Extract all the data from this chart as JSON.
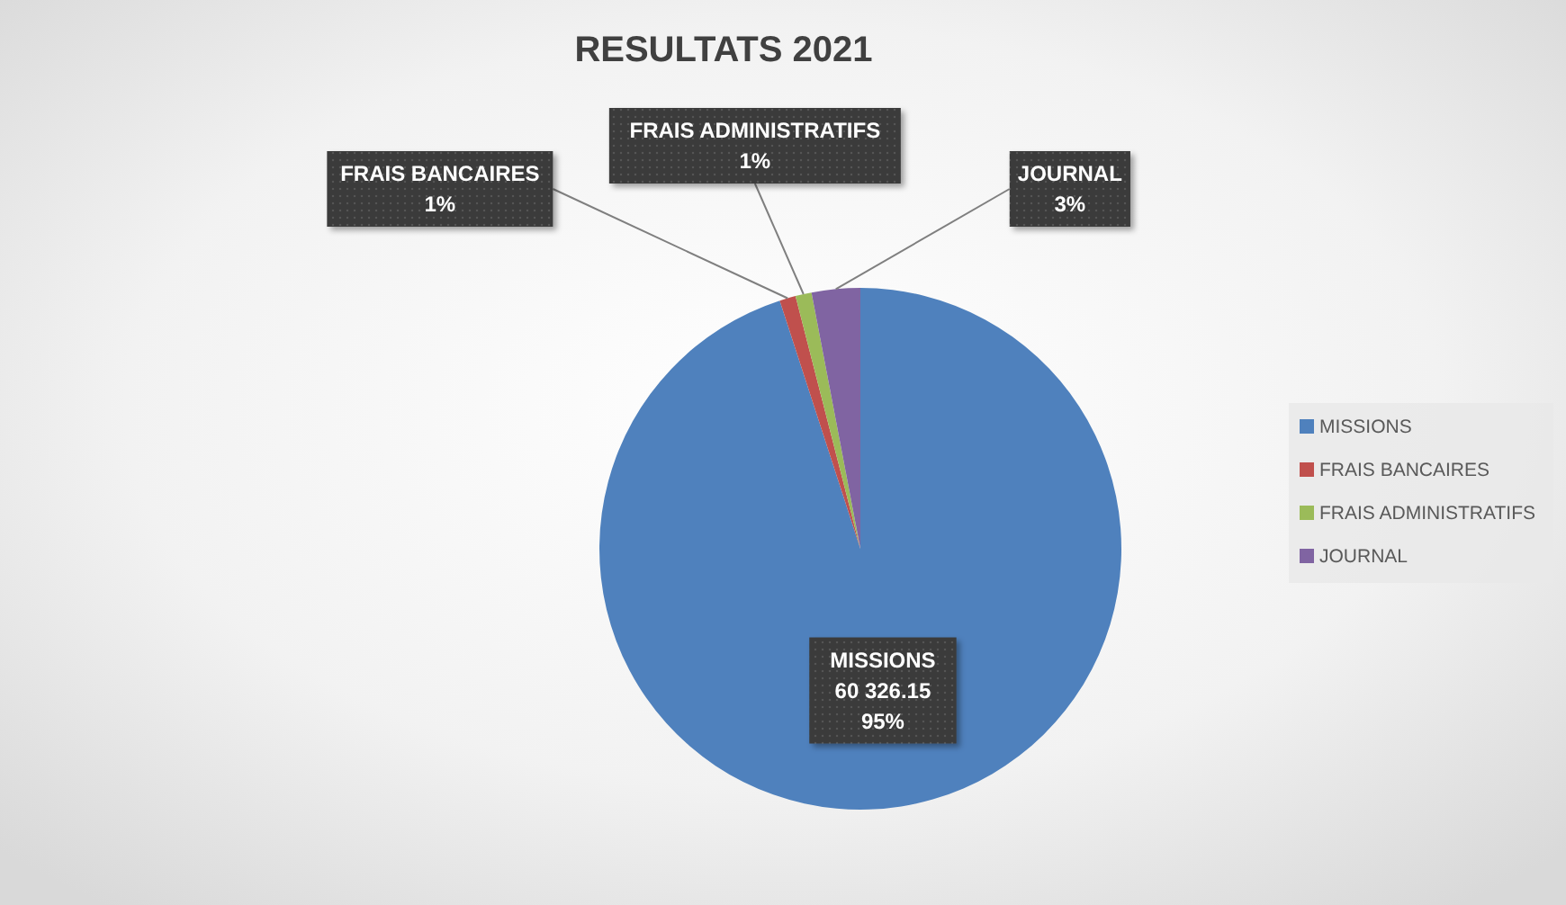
{
  "chart_data": {
    "type": "pie",
    "title": "RESULTATS 2021",
    "categories": [
      "MISSIONS",
      "FRAIS BANCAIRES",
      "FRAIS ADMINISTRATIFS",
      "JOURNAL"
    ],
    "values": [
      95,
      1,
      1,
      3
    ],
    "colors": [
      "#4f81bd",
      "#c0504d",
      "#9bbb59",
      "#8064a2"
    ],
    "value_labels": [
      "60 326.15\n95%",
      "1%",
      "1%",
      "3%"
    ],
    "legend": "right"
  }
}
